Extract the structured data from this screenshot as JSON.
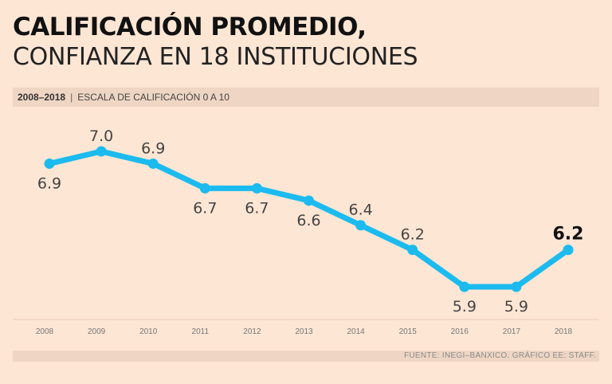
{
  "title_line1": "CALIFICACIÓN PROMEDIO,",
  "title_line2": "CONFIANZA EN 18 INSTITUCIONES",
  "subtitle": {
    "years": "2008–2018",
    "scale": "ESCALA DE CALIFICACIÓN 0 A 10"
  },
  "source": "FUENTE: INEGI–BANXICO. GRÁFICO EE: STAFF.",
  "colors": {
    "line": "#1bbbef",
    "background": "#fde6d4",
    "band": "#efd6c4"
  },
  "chart_data": {
    "type": "line",
    "title": "CALIFICACIÓN PROMEDIO, CONFIANZA EN 18 INSTITUCIONES",
    "xlabel": "",
    "ylabel": "",
    "categories": [
      "2008",
      "2009",
      "2010",
      "2011",
      "2012",
      "2013",
      "2014",
      "2015",
      "2016",
      "2017",
      "2018"
    ],
    "values": [
      6.9,
      7.0,
      6.9,
      6.7,
      6.7,
      6.6,
      6.4,
      6.2,
      5.9,
      5.9,
      6.2
    ],
    "labels": [
      "6.9",
      "7.0",
      "6.9",
      "6.7",
      "6.7",
      "6.6",
      "6.4",
      "6.2",
      "5.9",
      "5.9",
      "6.2"
    ],
    "label_side": [
      "below",
      "above",
      "above",
      "below",
      "below",
      "below",
      "above",
      "above",
      "below",
      "below",
      "above"
    ],
    "ylim": [
      5.9,
      7.0
    ],
    "grid": false
  }
}
